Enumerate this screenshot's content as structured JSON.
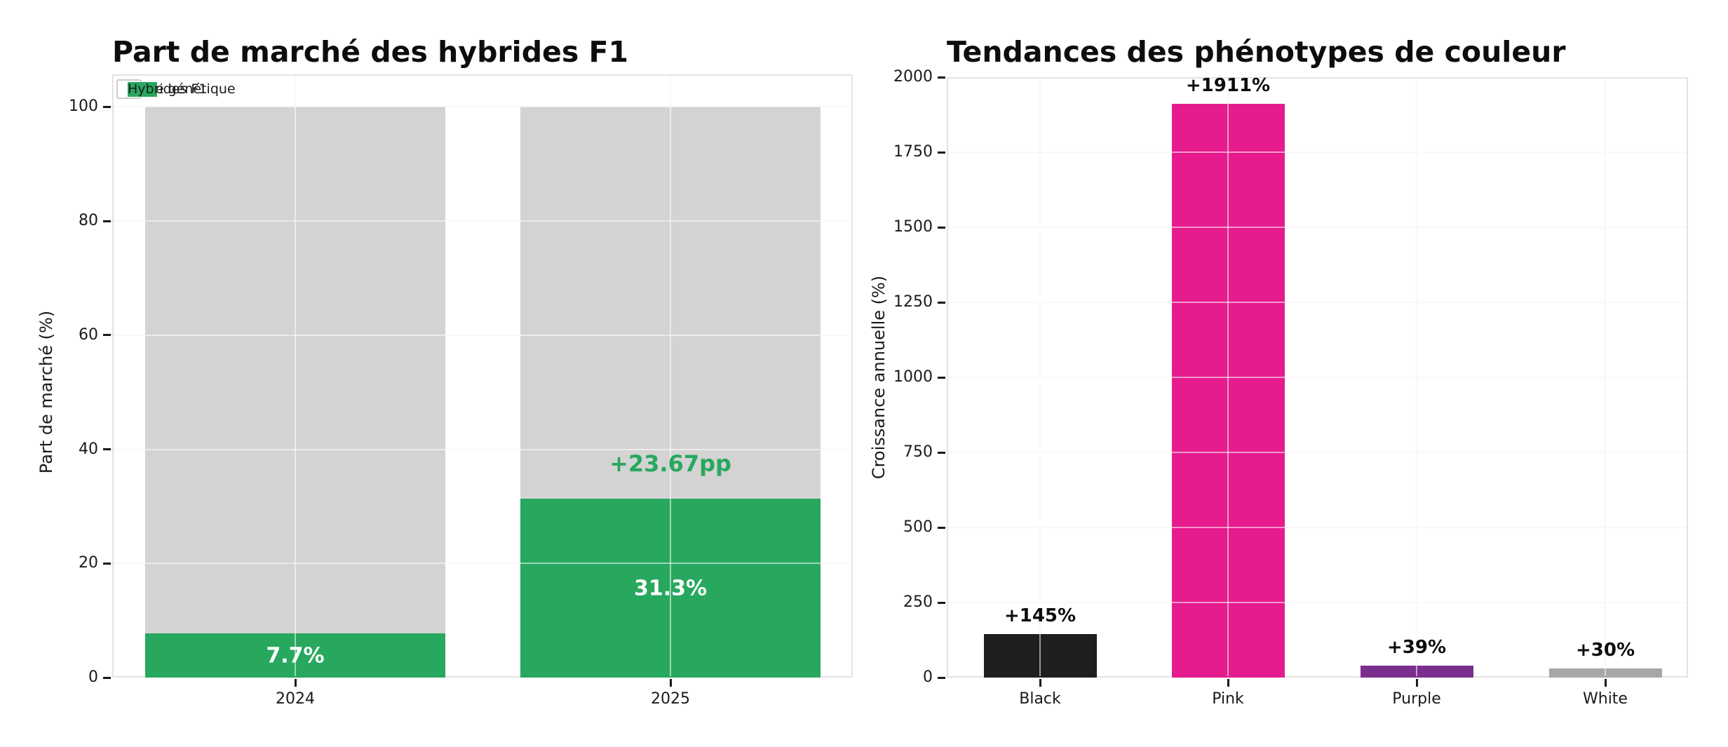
{
  "figure": {
    "background": "#ffffff"
  },
  "chart_data": [
    {
      "type": "bar",
      "stacked": true,
      "title": "Part de marché des hybrides F1",
      "ylabel": "Part de marché (%)",
      "xlabel": "",
      "categories": [
        "2024",
        "2025"
      ],
      "series": [
        {
          "name": "Hybrides F1",
          "color": "#27a85e",
          "values": [
            7.7,
            31.3
          ]
        },
        {
          "name": "Autre génétique",
          "color": "#d3d3d3",
          "values": [
            92.3,
            68.7
          ]
        }
      ],
      "stack_total": 100,
      "ylim": [
        0,
        105.7
      ],
      "yticks": [
        "0",
        "20",
        "40",
        "60",
        "80",
        "100"
      ],
      "grid": true,
      "legend": {
        "position": "upper left",
        "entries": [
          {
            "label": "Autre génétique",
            "color": "#d3d3d3"
          },
          {
            "label": "Hybrides F1",
            "color": "#27a85e"
          }
        ]
      },
      "segment_labels": [
        {
          "text": "7.7%",
          "category": 0,
          "color": "#ffffff"
        },
        {
          "text": "31.3%",
          "category": 1,
          "color": "#ffffff"
        }
      ],
      "annotation": {
        "text": "+23.67pp",
        "category": 1,
        "color": "#27a85e"
      }
    },
    {
      "type": "bar",
      "stacked": false,
      "title": "Tendances des phénotypes de couleur",
      "ylabel": "Croissance annuelle (%)",
      "xlabel": "",
      "categories": [
        "Black",
        "Pink",
        "Purple",
        "White"
      ],
      "values": [
        145,
        1911,
        39,
        30
      ],
      "bar_colors": [
        "#1e1e1e",
        "#e61b8d",
        "#7a2f8f",
        "#a7a7a7"
      ],
      "bar_labels": [
        "+145%",
        "+1911%",
        "+39%",
        "+30%"
      ],
      "ylim": [
        0,
        2000
      ],
      "yticks": [
        "0",
        "250",
        "500",
        "750",
        "1000",
        "1250",
        "1500",
        "1750",
        "2000"
      ],
      "grid": true,
      "legend": null
    }
  ]
}
